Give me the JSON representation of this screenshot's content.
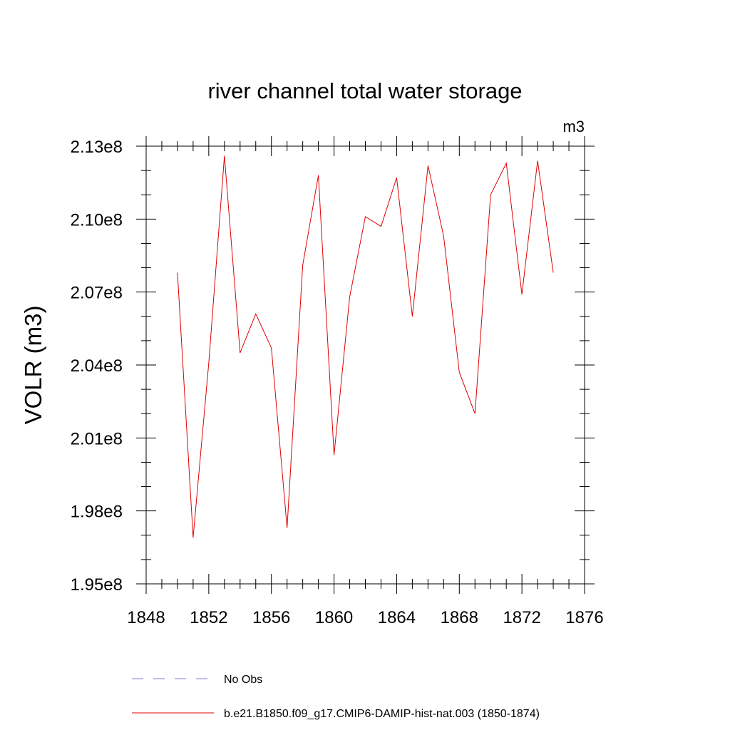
{
  "chart_data": {
    "type": "line",
    "title": "river channel total water storage",
    "units_label": "m3",
    "ylabel": "VOLR  (m3)",
    "xlabel": "",
    "xlim": [
      1848,
      1876
    ],
    "ylim": [
      195000000,
      213000000
    ],
    "x_ticks": [
      1848,
      1852,
      1856,
      1860,
      1864,
      1868,
      1872,
      1876
    ],
    "x_tick_labels": [
      "1848",
      "1852",
      "1856",
      "1860",
      "1864",
      "1868",
      "1872",
      "1876"
    ],
    "y_ticks": [
      195000000,
      198000000,
      201000000,
      204000000,
      207000000,
      210000000,
      213000000
    ],
    "y_tick_labels": [
      "1.95e8",
      "1.98e8",
      "2.01e8",
      "2.04e8",
      "2.07e8",
      "2.10e8",
      "2.13e8"
    ],
    "grid": false,
    "legend_position": "bottom",
    "series": [
      {
        "name": "No Obs",
        "color": "#7b7bd4",
        "dash": "dashed",
        "x": [],
        "y": []
      },
      {
        "name": "b.e21.B1850.f09_g17.CMIP6-DAMIP-hist-nat.003 (1850-1874)",
        "color": "#e00000",
        "dash": "solid",
        "x": [
          1850,
          1851,
          1852,
          1853,
          1854,
          1855,
          1856,
          1857,
          1858,
          1859,
          1860,
          1861,
          1862,
          1863,
          1864,
          1865,
          1866,
          1867,
          1868,
          1869,
          1870,
          1871,
          1872,
          1873,
          1874
        ],
        "y": [
          207800000,
          196900000,
          204100000,
          212600000,
          204500000,
          206100000,
          204700000,
          197300000,
          208100000,
          211800000,
          200300000,
          206800000,
          210100000,
          209700000,
          211700000,
          206000000,
          212200000,
          209300000,
          203700000,
          202000000,
          211000000,
          212300000,
          206900000,
          212400000,
          207800000
        ]
      }
    ]
  }
}
